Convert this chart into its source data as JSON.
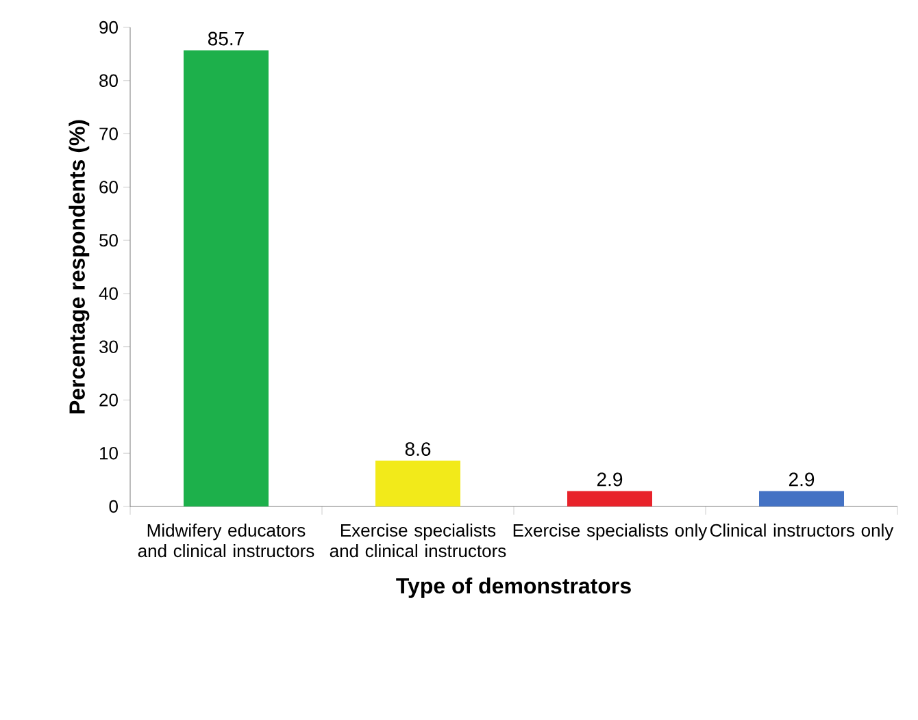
{
  "chart_data": {
    "type": "bar",
    "xlabel": "Type of demonstrators",
    "ylabel": "Percentage respondents (%)",
    "categories": [
      "Midwifery educators and clinical instructors",
      "Exercise specialists and clinical instructors",
      "Exercise specialists only",
      "Clinical instructors only"
    ],
    "values": [
      85.7,
      8.6,
      2.9,
      2.9
    ],
    "colors": [
      "#1db04b",
      "#f2ea1a",
      "#e8222a",
      "#4472c4"
    ],
    "ylim": [
      0,
      90
    ],
    "yticks": [
      0,
      10,
      20,
      30,
      40,
      50,
      60,
      70,
      80,
      90
    ],
    "data_labels": true
  }
}
